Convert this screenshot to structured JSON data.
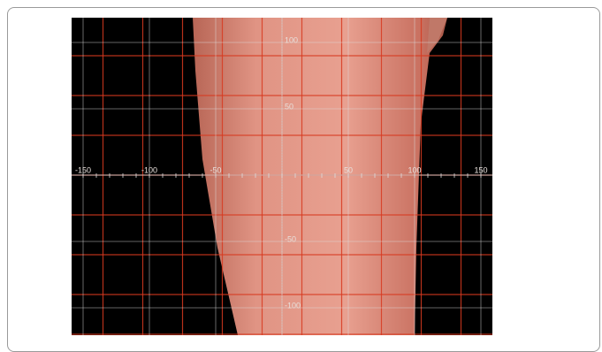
{
  "figure": {
    "x_labels": [
      "-150",
      "-100",
      "-50",
      "50",
      "100",
      "150"
    ],
    "y_labels": [
      "100",
      "50",
      "-50",
      "-100"
    ]
  }
}
